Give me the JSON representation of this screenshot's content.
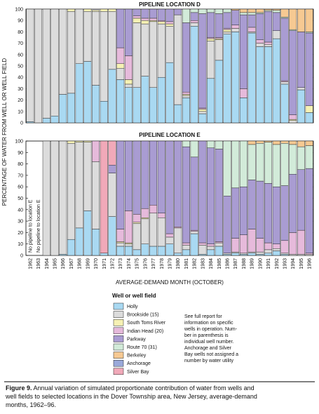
{
  "chart_data": [
    {
      "type": "bar",
      "stacked": true,
      "title": "PIPELINE LOCATION D",
      "ylabel": "PERCENTAGE OF WATER FROM WELL OR WELL FIELD",
      "categories": [
        "1962",
        "1963",
        "1964",
        "1965",
        "1966",
        "1967",
        "1968",
        "1969",
        "1970",
        "1971",
        "1972",
        "1973",
        "1974",
        "1975",
        "1976",
        "1977",
        "1978",
        "1979",
        "1980",
        "1981",
        "1982",
        "1983",
        "1984",
        "1985",
        "1986",
        "1987",
        "1988",
        "1989",
        "1990",
        "1991",
        "1992",
        "1993",
        "1994",
        "1995",
        "1996"
      ],
      "ylim": [
        0,
        100
      ],
      "yticks": [
        0,
        10,
        20,
        30,
        40,
        50,
        60,
        70,
        80,
        90,
        100
      ],
      "series": [
        {
          "name": "Holly",
          "color": "#a9d9f2",
          "values": [
            1,
            0,
            4,
            6,
            25,
            26,
            52,
            54,
            33,
            19,
            47,
            38,
            31,
            31,
            41,
            31,
            40,
            53,
            16,
            22,
            85,
            8,
            39,
            55,
            78,
            80,
            22,
            79,
            67,
            67,
            74,
            34,
            0,
            29,
            9
          ]
        },
        {
          "name": "Brookside (15)",
          "color": "#dcdcdc",
          "values": [
            99,
            100,
            96,
            94,
            75,
            72,
            48,
            44,
            65,
            79,
            51,
            10,
            3,
            57,
            46,
            58,
            47,
            32,
            79,
            2,
            3,
            2,
            33,
            18,
            2,
            3,
            0,
            1,
            3,
            2,
            7,
            2,
            2,
            2,
            0
          ]
        },
        {
          "name": "South Toms River",
          "color": "#f6f1b4",
          "values": [
            0,
            0,
            0,
            0,
            0,
            2,
            0,
            2,
            1,
            2,
            2,
            4,
            4,
            4,
            3,
            1,
            2,
            2,
            0,
            1,
            0,
            2,
            2,
            1,
            2,
            0,
            0,
            0,
            0,
            0,
            0,
            0,
            1,
            0,
            6
          ]
        },
        {
          "name": "Indian Head (20)",
          "color": "#e6badb",
          "values": [
            0,
            0,
            0,
            0,
            0,
            0,
            0,
            0,
            0,
            0,
            0,
            14,
            21,
            2,
            2,
            2,
            1,
            2,
            0,
            2,
            2,
            1,
            1,
            1,
            1,
            3,
            8,
            4,
            3,
            2,
            0,
            1,
            4,
            0,
            0
          ]
        },
        {
          "name": "Parkway",
          "color": "#a99cd2",
          "values": [
            0,
            0,
            0,
            0,
            0,
            0,
            0,
            0,
            0,
            0,
            0,
            34,
            41,
            6,
            8,
            8,
            10,
            11,
            5,
            61,
            7,
            83,
            22,
            21,
            14,
            13,
            65,
            11,
            23,
            27,
            16,
            55,
            74,
            49,
            64
          ]
        },
        {
          "name": "Route 70 (31)",
          "color": "#d2ebd9",
          "values": [
            0,
            0,
            0,
            0,
            0,
            0,
            0,
            0,
            0,
            0,
            0,
            0,
            0,
            0,
            0,
            0,
            0,
            0,
            0,
            12,
            3,
            4,
            3,
            4,
            3,
            0,
            2,
            2,
            1,
            1,
            2,
            1,
            1,
            0,
            1
          ]
        },
        {
          "name": "Berkeley",
          "color": "#f6c992",
          "values": [
            0,
            0,
            0,
            0,
            0,
            0,
            0,
            0,
            0,
            0,
            0,
            0,
            0,
            0,
            0,
            0,
            0,
            0,
            0,
            0,
            0,
            0,
            0,
            0,
            0,
            1,
            3,
            3,
            3,
            1,
            1,
            7,
            18,
            20,
            20
          ]
        },
        {
          "name": "Anchorage",
          "color": "#9aa9da",
          "values": [
            0,
            0,
            0,
            0,
            0,
            0,
            0,
            0,
            0,
            0,
            0,
            0,
            0,
            0,
            0,
            0,
            0,
            0,
            0,
            0,
            0,
            0,
            0,
            0,
            0,
            0,
            0,
            0,
            0,
            0,
            0,
            0,
            0,
            0,
            0
          ]
        },
        {
          "name": "Silver Bay",
          "color": "#f1a9b9",
          "values": [
            0,
            0,
            0,
            0,
            0,
            0,
            0,
            0,
            0,
            0,
            0,
            0,
            0,
            0,
            0,
            0,
            0,
            0,
            0,
            0,
            0,
            0,
            0,
            0,
            0,
            0,
            0,
            0,
            0,
            0,
            0,
            0,
            0,
            0,
            0
          ]
        }
      ]
    },
    {
      "type": "bar",
      "stacked": true,
      "title": "PIPELINE LOCATION E",
      "xlabel": "AVERAGE-DEMAND MONTH (OCTOBER)",
      "annotations": [
        "No pipeline to location E",
        "No pipeline to location E"
      ],
      "categories": [
        "1962",
        "1963",
        "1964",
        "1965",
        "1966",
        "1967",
        "1968",
        "1969",
        "1970",
        "1971",
        "1972",
        "1973",
        "1974",
        "1975",
        "1976",
        "1977",
        "1978",
        "1979",
        "1980",
        "1981",
        "1982",
        "1983",
        "1984",
        "1985",
        "1986",
        "1987",
        "1988",
        "1989",
        "1990",
        "1991",
        "1992",
        "1993",
        "1994",
        "1995",
        "1996"
      ],
      "ylim": [
        0,
        100
      ],
      "yticks": [
        0,
        10,
        20,
        30,
        40,
        50,
        60,
        70,
        80,
        90,
        100
      ],
      "series": [
        {
          "name": "Holly",
          "values": [
            null,
            null,
            0,
            0,
            1,
            14,
            24,
            39,
            23,
            2,
            34,
            8,
            8,
            5,
            10,
            8,
            8,
            10,
            2,
            5,
            19,
            1,
            5,
            8,
            1,
            2,
            1,
            2,
            1,
            2,
            4,
            1,
            0,
            0,
            0
          ]
        },
        {
          "name": "Brookside (15)",
          "values": [
            null,
            null,
            100,
            100,
            99,
            84,
            75,
            60,
            59,
            0,
            38,
            3,
            2,
            23,
            22,
            29,
            25,
            6,
            22,
            4,
            2,
            8,
            3,
            3,
            1,
            1,
            1,
            1,
            2,
            3,
            2,
            1,
            1,
            1,
            1
          ]
        },
        {
          "name": "South Toms River",
          "values": [
            null,
            null,
            0,
            0,
            0,
            2,
            1,
            1,
            0,
            0,
            0,
            1,
            1,
            1,
            1,
            0,
            0,
            0,
            0,
            0,
            0,
            0,
            0,
            0,
            0,
            0,
            0,
            0,
            0,
            0,
            0,
            0,
            0,
            0,
            0
          ]
        },
        {
          "name": "Indian Head (20)",
          "values": [
            null,
            null,
            0,
            0,
            0,
            0,
            0,
            0,
            18,
            0,
            0,
            11,
            28,
            7,
            8,
            7,
            4,
            3,
            1,
            2,
            1,
            2,
            2,
            1,
            0,
            12,
            16,
            20,
            12,
            6,
            4,
            11,
            19,
            21,
            1
          ]
        },
        {
          "name": "Parkway",
          "values": [
            null,
            null,
            0,
            0,
            0,
            0,
            0,
            0,
            0,
            0,
            7,
            77,
            61,
            64,
            59,
            56,
            63,
            81,
            75,
            84,
            64,
            89,
            84,
            81,
            50,
            44,
            42,
            43,
            50,
            52,
            50,
            48,
            51,
            53,
            74
          ]
        },
        {
          "name": "Route 70 (31)",
          "values": [
            null,
            null,
            0,
            0,
            0,
            0,
            0,
            0,
            0,
            0,
            0,
            0,
            0,
            0,
            0,
            0,
            0,
            0,
            0,
            5,
            14,
            0,
            6,
            7,
            48,
            41,
            40,
            31,
            33,
            36,
            37,
            37,
            26,
            20,
            20
          ]
        },
        {
          "name": "Berkeley",
          "values": [
            null,
            null,
            0,
            0,
            0,
            0,
            0,
            0,
            0,
            0,
            0,
            0,
            0,
            0,
            0,
            0,
            0,
            0,
            0,
            0,
            0,
            0,
            0,
            0,
            0,
            0,
            0,
            3,
            2,
            1,
            3,
            2,
            3,
            5,
            4
          ]
        },
        {
          "name": "Anchorage",
          "values": [
            null,
            null,
            0,
            0,
            0,
            0,
            0,
            0,
            0,
            0,
            0,
            0,
            0,
            0,
            0,
            0,
            0,
            0,
            0,
            0,
            0,
            0,
            0,
            0,
            0,
            0,
            0,
            0,
            0,
            0,
            0,
            0,
            0,
            0,
            0
          ]
        },
        {
          "name": "Silver Bay",
          "values": [
            null,
            null,
            0,
            0,
            0,
            0,
            0,
            0,
            0,
            98,
            21,
            0,
            0,
            0,
            0,
            0,
            0,
            0,
            0,
            0,
            0,
            0,
            0,
            0,
            0,
            0,
            0,
            0,
            0,
            0,
            0,
            0,
            0,
            0,
            0
          ]
        }
      ]
    }
  ],
  "legend_title": "Well or well field",
  "note": [
    "See full report for",
    "information on specific",
    "wells in operation. Num-",
    "ber in parenthesis is",
    "individual well number.",
    "Anchorage and Silver",
    "Bay wells not assigned a",
    "number by water utility"
  ],
  "caption": {
    "label": "Figure 9.",
    "lines": [
      " Annual variation of simulated proportionate contribution of water from wells and",
      "well fields to selected locations in the Dover Township area, New Jersey, average-demand",
      "months, 1962–96."
    ]
  }
}
